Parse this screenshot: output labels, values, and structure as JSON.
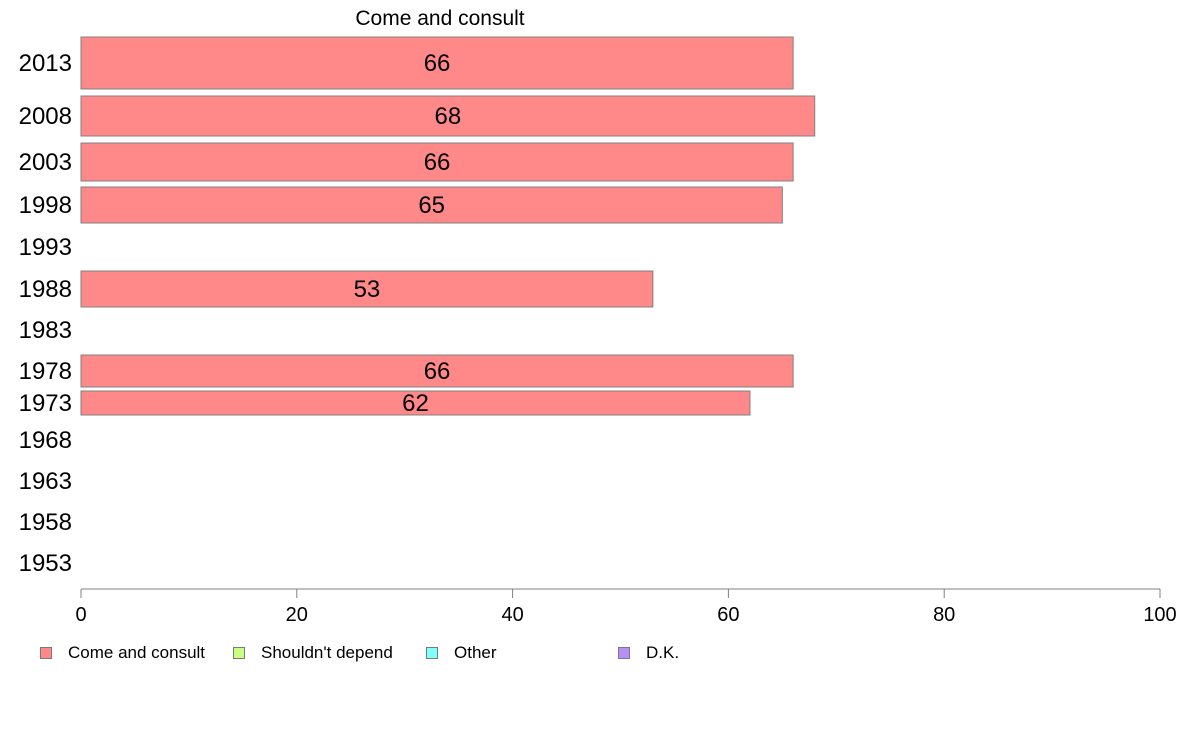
{
  "chart_data": {
    "type": "bar",
    "orientation": "horizontal",
    "title": "Come and consult",
    "categories": [
      "2013",
      "2008",
      "2003",
      "1998",
      "1993",
      "1988",
      "1983",
      "1978",
      "1973",
      "1968",
      "1963",
      "1958",
      "1953"
    ],
    "series": [
      {
        "name": "Come and consult",
        "color": "#ff8888",
        "values": [
          66,
          68,
          66,
          65,
          null,
          53,
          null,
          66,
          62,
          null,
          null,
          null,
          null
        ]
      }
    ],
    "data_labels": [
      "66",
      "68",
      "66",
      "65",
      "",
      "53",
      "",
      "66",
      "62",
      "",
      "",
      "",
      ""
    ],
    "xlim": [
      0,
      100
    ],
    "xticks": [
      0,
      20,
      40,
      60,
      80,
      100
    ],
    "grid": false,
    "legend_position": "bottom"
  },
  "legend": {
    "items": [
      {
        "label": "Come and consult",
        "color": "#ff8888"
      },
      {
        "label": "Shouldn't depend",
        "color": "#c8ff80"
      },
      {
        "label": "Other",
        "color": "#80ffff"
      },
      {
        "label": "D.K.",
        "color": "#b88cff"
      }
    ]
  }
}
